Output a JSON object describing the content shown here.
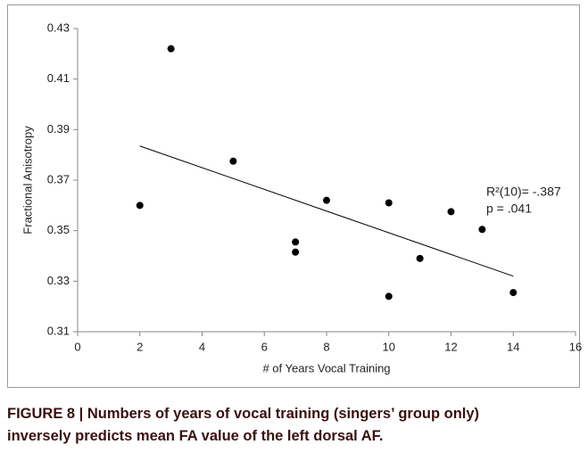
{
  "chart_data": {
    "type": "scatter",
    "xlabel": "# of Years Vocal Training",
    "ylabel": "Fractional Anisotropy",
    "x": [
      2,
      3,
      5,
      7,
      7,
      8,
      10,
      10,
      11,
      12,
      13,
      14
    ],
    "values": [
      0.36,
      0.422,
      0.3775,
      0.3455,
      0.3415,
      0.362,
      0.361,
      0.324,
      0.339,
      0.3575,
      0.3505,
      0.3255
    ],
    "color": "#000000",
    "trendline": {
      "x": [
        2,
        14
      ],
      "y": [
        0.3835,
        0.332
      ]
    },
    "annotations": [
      "R²(10)= -.387",
      "p = .041"
    ],
    "xlim": [
      0,
      16
    ],
    "xticks": [
      0,
      2,
      4,
      6,
      8,
      10,
      12,
      14,
      16
    ],
    "ylim": [
      0.31,
      0.43
    ],
    "yticks": [
      0.31,
      0.33,
      0.35,
      0.37,
      0.39,
      0.41,
      0.43
    ]
  },
  "caption": "FIGURE 8 | Numbers of years of vocal training (singers’ group only) inversely predicts mean FA value of the left dorsal AF."
}
